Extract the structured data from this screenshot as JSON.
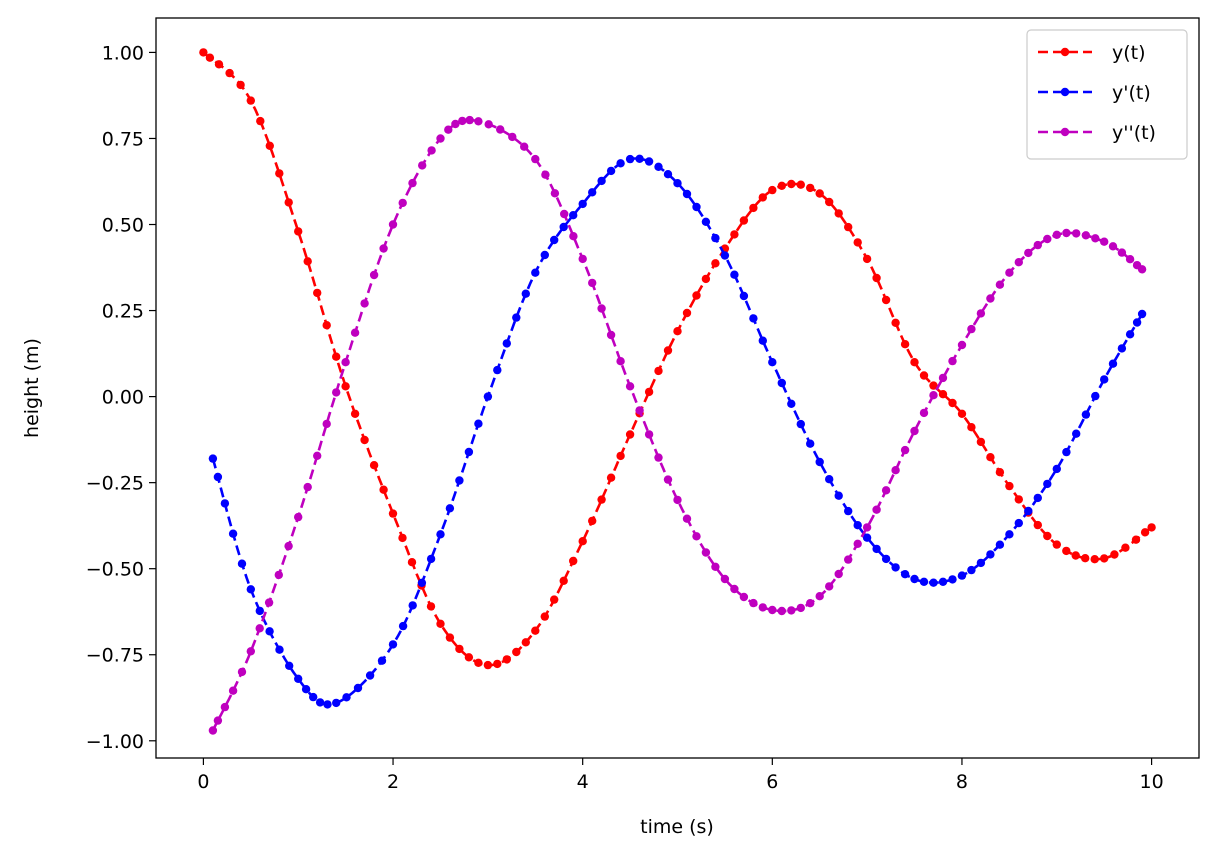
{
  "chart_data": {
    "type": "line",
    "title": "",
    "xlabel": "time (s)",
    "ylabel": "height (m)",
    "xlim": [
      -0.5,
      10.5
    ],
    "ylim": [
      -1.05,
      1.1
    ],
    "xticks": [
      0,
      2,
      4,
      6,
      8,
      10
    ],
    "xtick_labels": [
      "0",
      "2",
      "4",
      "6",
      "8",
      "10"
    ],
    "yticks": [
      1.0,
      0.75,
      0.5,
      0.25,
      0.0,
      -0.25,
      -0.5,
      -0.75,
      -1.0
    ],
    "ytick_labels": [
      "1.00",
      "0.75",
      "0.50",
      "0.25",
      "0.00",
      "−0.25",
      "−0.50",
      "−0.75",
      "−1.00"
    ],
    "grid": false,
    "legend_position": "upper right",
    "line_style": "dashed with dot markers",
    "series": [
      {
        "name": "y(t)",
        "color": "#ff0000",
        "x": [
          0,
          0.5,
          1.0,
          1.5,
          2.0,
          2.5,
          3.0,
          3.5,
          4.0,
          4.5,
          5.0,
          5.5,
          6.0,
          6.5,
          7.0,
          7.5,
          8.0,
          8.5,
          9.0,
          9.5,
          10.0
        ],
        "y": [
          1.0,
          0.86,
          0.48,
          0.03,
          -0.34,
          -0.66,
          -0.78,
          -0.68,
          -0.42,
          -0.11,
          0.19,
          0.43,
          0.6,
          0.59,
          0.4,
          0.1,
          -0.05,
          -0.26,
          -0.43,
          -0.47,
          -0.38
        ]
      },
      {
        "name": "y'(t)",
        "color": "#0000ff",
        "x": [
          0.1,
          0.5,
          1.0,
          1.4,
          2.0,
          2.5,
          3.0,
          3.5,
          4.0,
          4.5,
          5.0,
          5.5,
          6.0,
          6.5,
          7.0,
          7.5,
          8.0,
          8.5,
          9.0,
          9.5,
          9.9
        ],
        "y": [
          -0.18,
          -0.56,
          -0.82,
          -0.89,
          -0.72,
          -0.4,
          0.0,
          0.36,
          0.56,
          0.69,
          0.62,
          0.41,
          0.1,
          -0.19,
          -0.41,
          -0.53,
          -0.52,
          -0.4,
          -0.21,
          0.05,
          0.24
        ]
      },
      {
        "name": "y''(t)",
        "color": "#bf00bf",
        "x": [
          0.1,
          0.5,
          1.0,
          1.5,
          2.0,
          2.5,
          2.9,
          3.5,
          4.0,
          4.5,
          5.0,
          5.5,
          6.0,
          6.5,
          7.0,
          7.5,
          8.0,
          8.5,
          9.0,
          9.5,
          9.9
        ],
        "y": [
          -0.97,
          -0.74,
          -0.35,
          0.1,
          0.5,
          0.75,
          0.8,
          0.69,
          0.4,
          0.03,
          -0.3,
          -0.53,
          -0.62,
          -0.58,
          -0.38,
          -0.1,
          0.15,
          0.36,
          0.47,
          0.45,
          0.37
        ]
      }
    ]
  }
}
